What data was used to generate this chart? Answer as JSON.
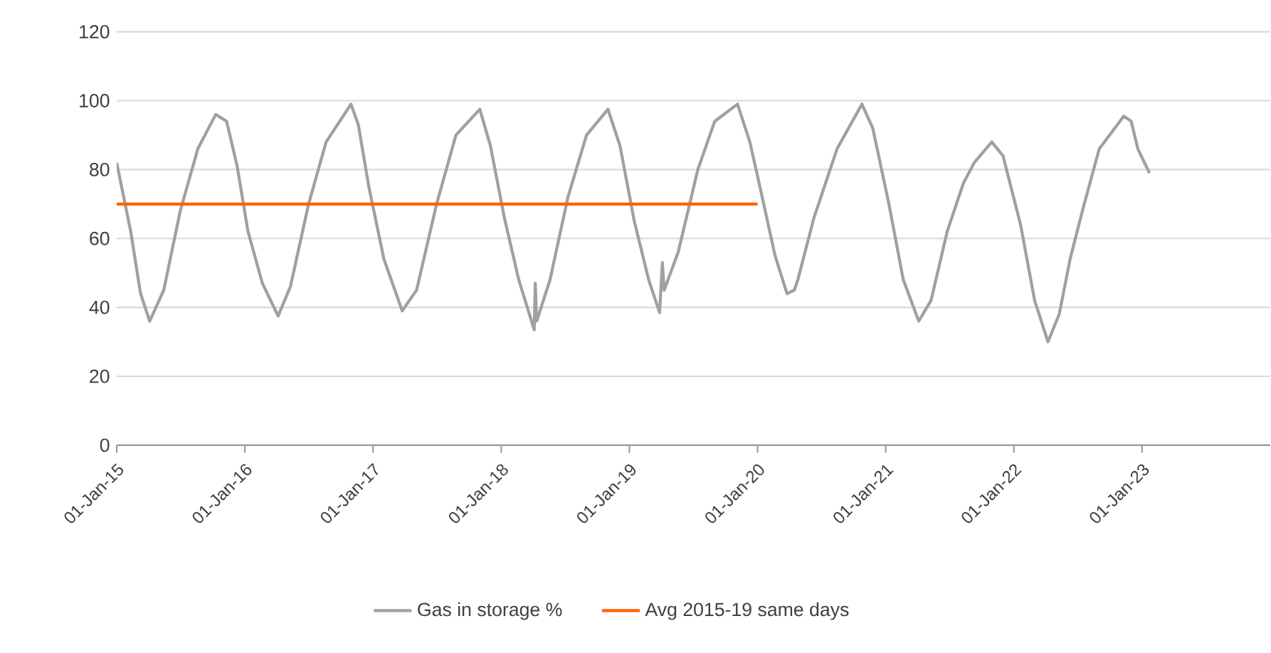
{
  "chart_data": {
    "type": "line",
    "xlim": [
      "2015-01-01",
      "2024-01-01"
    ],
    "xticks": [
      {
        "value": "2015-01-01",
        "label": "01-Jan-15"
      },
      {
        "value": "2016-01-01",
        "label": "01-Jan-16"
      },
      {
        "value": "2017-01-01",
        "label": "01-Jan-17"
      },
      {
        "value": "2018-01-01",
        "label": "01-Jan-18"
      },
      {
        "value": "2019-01-01",
        "label": "01-Jan-19"
      },
      {
        "value": "2020-01-01",
        "label": "01-Jan-20"
      },
      {
        "value": "2021-01-01",
        "label": "01-Jan-21"
      },
      {
        "value": "2022-01-01",
        "label": "01-Jan-22"
      },
      {
        "value": "2023-01-01",
        "label": "01-Jan-23"
      }
    ],
    "ylim": [
      0,
      120
    ],
    "yticks": [
      0,
      20,
      40,
      60,
      80,
      100,
      120
    ],
    "grid": "y",
    "legend": "bottom",
    "marker": "none",
    "series": [
      {
        "name": "Gas in storage %",
        "color": "#a0a0a0",
        "x": [
          "2015-01-01",
          "2015-02-10",
          "2015-03-10",
          "2015-04-05",
          "2015-05-15",
          "2015-07-01",
          "2015-08-20",
          "2015-10-10",
          "2015-11-10",
          "2015-12-10",
          "2016-01-10",
          "2016-02-20",
          "2016-04-05",
          "2016-05-10",
          "2016-07-01",
          "2016-08-20",
          "2016-10-30",
          "2016-11-20",
          "2016-12-20",
          "2017-02-01",
          "2017-03-25",
          "2017-05-05",
          "2017-07-01",
          "2017-08-25",
          "2017-11-01",
          "2017-12-01",
          "2018-01-10",
          "2018-02-20",
          "2018-04-05",
          "2018-04-08",
          "2018-04-12",
          "2018-05-20",
          "2018-07-10",
          "2018-09-01",
          "2018-11-01",
          "2018-12-05",
          "2019-01-15",
          "2019-02-25",
          "2019-03-28",
          "2019-04-05",
          "2019-04-10",
          "2019-05-20",
          "2019-07-15",
          "2019-09-01",
          "2019-11-05",
          "2019-12-10",
          "2020-01-10",
          "2020-02-20",
          "2020-03-25",
          "2020-04-15",
          "2020-04-25",
          "2020-06-10",
          "2020-08-15",
          "2020-10-25",
          "2020-11-25",
          "2021-01-10",
          "2021-02-20",
          "2021-04-05",
          "2021-05-10",
          "2021-06-25",
          "2021-08-10",
          "2021-09-10",
          "2021-10-30",
          "2021-12-01",
          "2022-01-20",
          "2022-03-01",
          "2022-04-08",
          "2022-05-10",
          "2022-06-10",
          "2022-07-15",
          "2022-09-01",
          "2022-11-10",
          "2022-12-01",
          "2022-12-20",
          "2023-01-22"
        ],
        "values": [
          82,
          62,
          44,
          36,
          45,
          68,
          86,
          96,
          94,
          81,
          62,
          47,
          37.5,
          46,
          70,
          88,
          99,
          93,
          75,
          54,
          39,
          45,
          70,
          90,
          97.5,
          87,
          66,
          48,
          33.5,
          47,
          36,
          48,
          72,
          90,
          97.5,
          87,
          65,
          48,
          38.5,
          53,
          45,
          56,
          80,
          94,
          99,
          88,
          74,
          55,
          44,
          45,
          48,
          66,
          86,
          99,
          92,
          70,
          48,
          36,
          42,
          62,
          76,
          82,
          88,
          84,
          64,
          42,
          30,
          38,
          54,
          68,
          86,
          95.5,
          94,
          86,
          79
        ]
      },
      {
        "name": "Avg 2015-19 same days",
        "color": "#ff6200",
        "x": [
          "2015-01-01",
          "2020-01-01"
        ],
        "values": [
          70,
          70
        ]
      }
    ]
  }
}
